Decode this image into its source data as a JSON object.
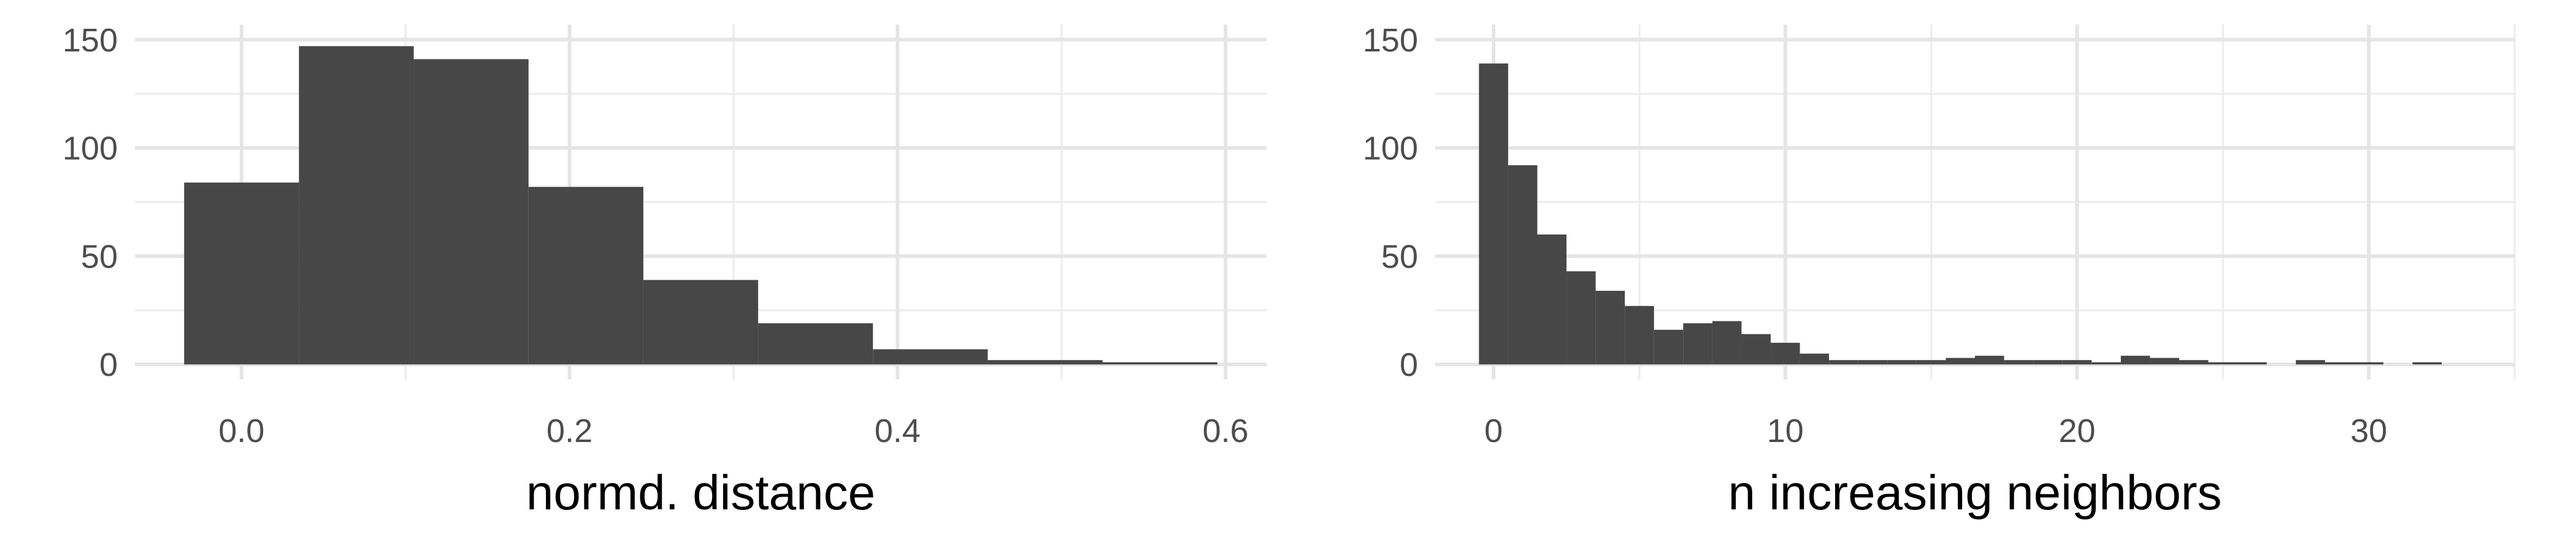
{
  "chart_data": [
    {
      "type": "bar",
      "chart_kind": "histogram",
      "xlabel": "normd. distance",
      "ylabel": "",
      "x_ticks": [
        "0.0",
        "0.2",
        "0.4",
        "0.6"
      ],
      "y_ticks": [
        "0",
        "50",
        "100",
        "150"
      ],
      "xlim": [
        -0.065,
        0.625
      ],
      "ylim": [
        -7,
        157
      ],
      "grid": true,
      "bar_color": "#474747",
      "bins": [
        {
          "x0": -0.035,
          "x1": 0.035,
          "count": 84
        },
        {
          "x0": 0.035,
          "x1": 0.105,
          "count": 147
        },
        {
          "x0": 0.105,
          "x1": 0.175,
          "count": 141
        },
        {
          "x0": 0.175,
          "x1": 0.245,
          "count": 82
        },
        {
          "x0": 0.245,
          "x1": 0.315,
          "count": 39
        },
        {
          "x0": 0.315,
          "x1": 0.385,
          "count": 19
        },
        {
          "x0": 0.385,
          "x1": 0.455,
          "count": 7
        },
        {
          "x0": 0.455,
          "x1": 0.525,
          "count": 2
        },
        {
          "x0": 0.525,
          "x1": 0.595,
          "count": 1
        }
      ]
    },
    {
      "type": "bar",
      "chart_kind": "histogram",
      "xlabel": "n increasing neighbors",
      "ylabel": "",
      "x_ticks": [
        "0",
        "10",
        "20",
        "30"
      ],
      "y_ticks": [
        "0",
        "50",
        "100",
        "150"
      ],
      "xlim": [
        -2,
        35
      ],
      "ylim": [
        -7,
        157
      ],
      "grid": true,
      "bar_color": "#474747",
      "bins": [
        {
          "x0": -0.5,
          "x1": 0.5,
          "count": 139
        },
        {
          "x0": 0.5,
          "x1": 1.5,
          "count": 92
        },
        {
          "x0": 1.5,
          "x1": 2.5,
          "count": 60
        },
        {
          "x0": 2.5,
          "x1": 3.5,
          "count": 43
        },
        {
          "x0": 3.5,
          "x1": 4.5,
          "count": 34
        },
        {
          "x0": 4.5,
          "x1": 5.5,
          "count": 27
        },
        {
          "x0": 5.5,
          "x1": 6.5,
          "count": 16
        },
        {
          "x0": 6.5,
          "x1": 7.5,
          "count": 19
        },
        {
          "x0": 7.5,
          "x1": 8.5,
          "count": 20
        },
        {
          "x0": 8.5,
          "x1": 9.5,
          "count": 14
        },
        {
          "x0": 9.5,
          "x1": 10.5,
          "count": 10
        },
        {
          "x0": 10.5,
          "x1": 11.5,
          "count": 5
        },
        {
          "x0": 11.5,
          "x1": 12.5,
          "count": 2
        },
        {
          "x0": 12.5,
          "x1": 13.5,
          "count": 2
        },
        {
          "x0": 13.5,
          "x1": 14.5,
          "count": 2
        },
        {
          "x0": 14.5,
          "x1": 15.5,
          "count": 2
        },
        {
          "x0": 15.5,
          "x1": 16.5,
          "count": 3
        },
        {
          "x0": 16.5,
          "x1": 17.5,
          "count": 4
        },
        {
          "x0": 17.5,
          "x1": 18.5,
          "count": 2
        },
        {
          "x0": 18.5,
          "x1": 19.5,
          "count": 2
        },
        {
          "x0": 19.5,
          "x1": 20.5,
          "count": 2
        },
        {
          "x0": 20.5,
          "x1": 21.5,
          "count": 1
        },
        {
          "x0": 21.5,
          "x1": 22.5,
          "count": 4
        },
        {
          "x0": 22.5,
          "x1": 23.5,
          "count": 3
        },
        {
          "x0": 23.5,
          "x1": 24.5,
          "count": 2
        },
        {
          "x0": 24.5,
          "x1": 25.5,
          "count": 1
        },
        {
          "x0": 25.5,
          "x1": 26.5,
          "count": 1
        },
        {
          "x0": 27.5,
          "x1": 28.5,
          "count": 2
        },
        {
          "x0": 28.5,
          "x1": 29.5,
          "count": 1
        },
        {
          "x0": 29.5,
          "x1": 30.5,
          "count": 1
        },
        {
          "x0": 31.5,
          "x1": 32.5,
          "count": 1
        }
      ]
    }
  ]
}
